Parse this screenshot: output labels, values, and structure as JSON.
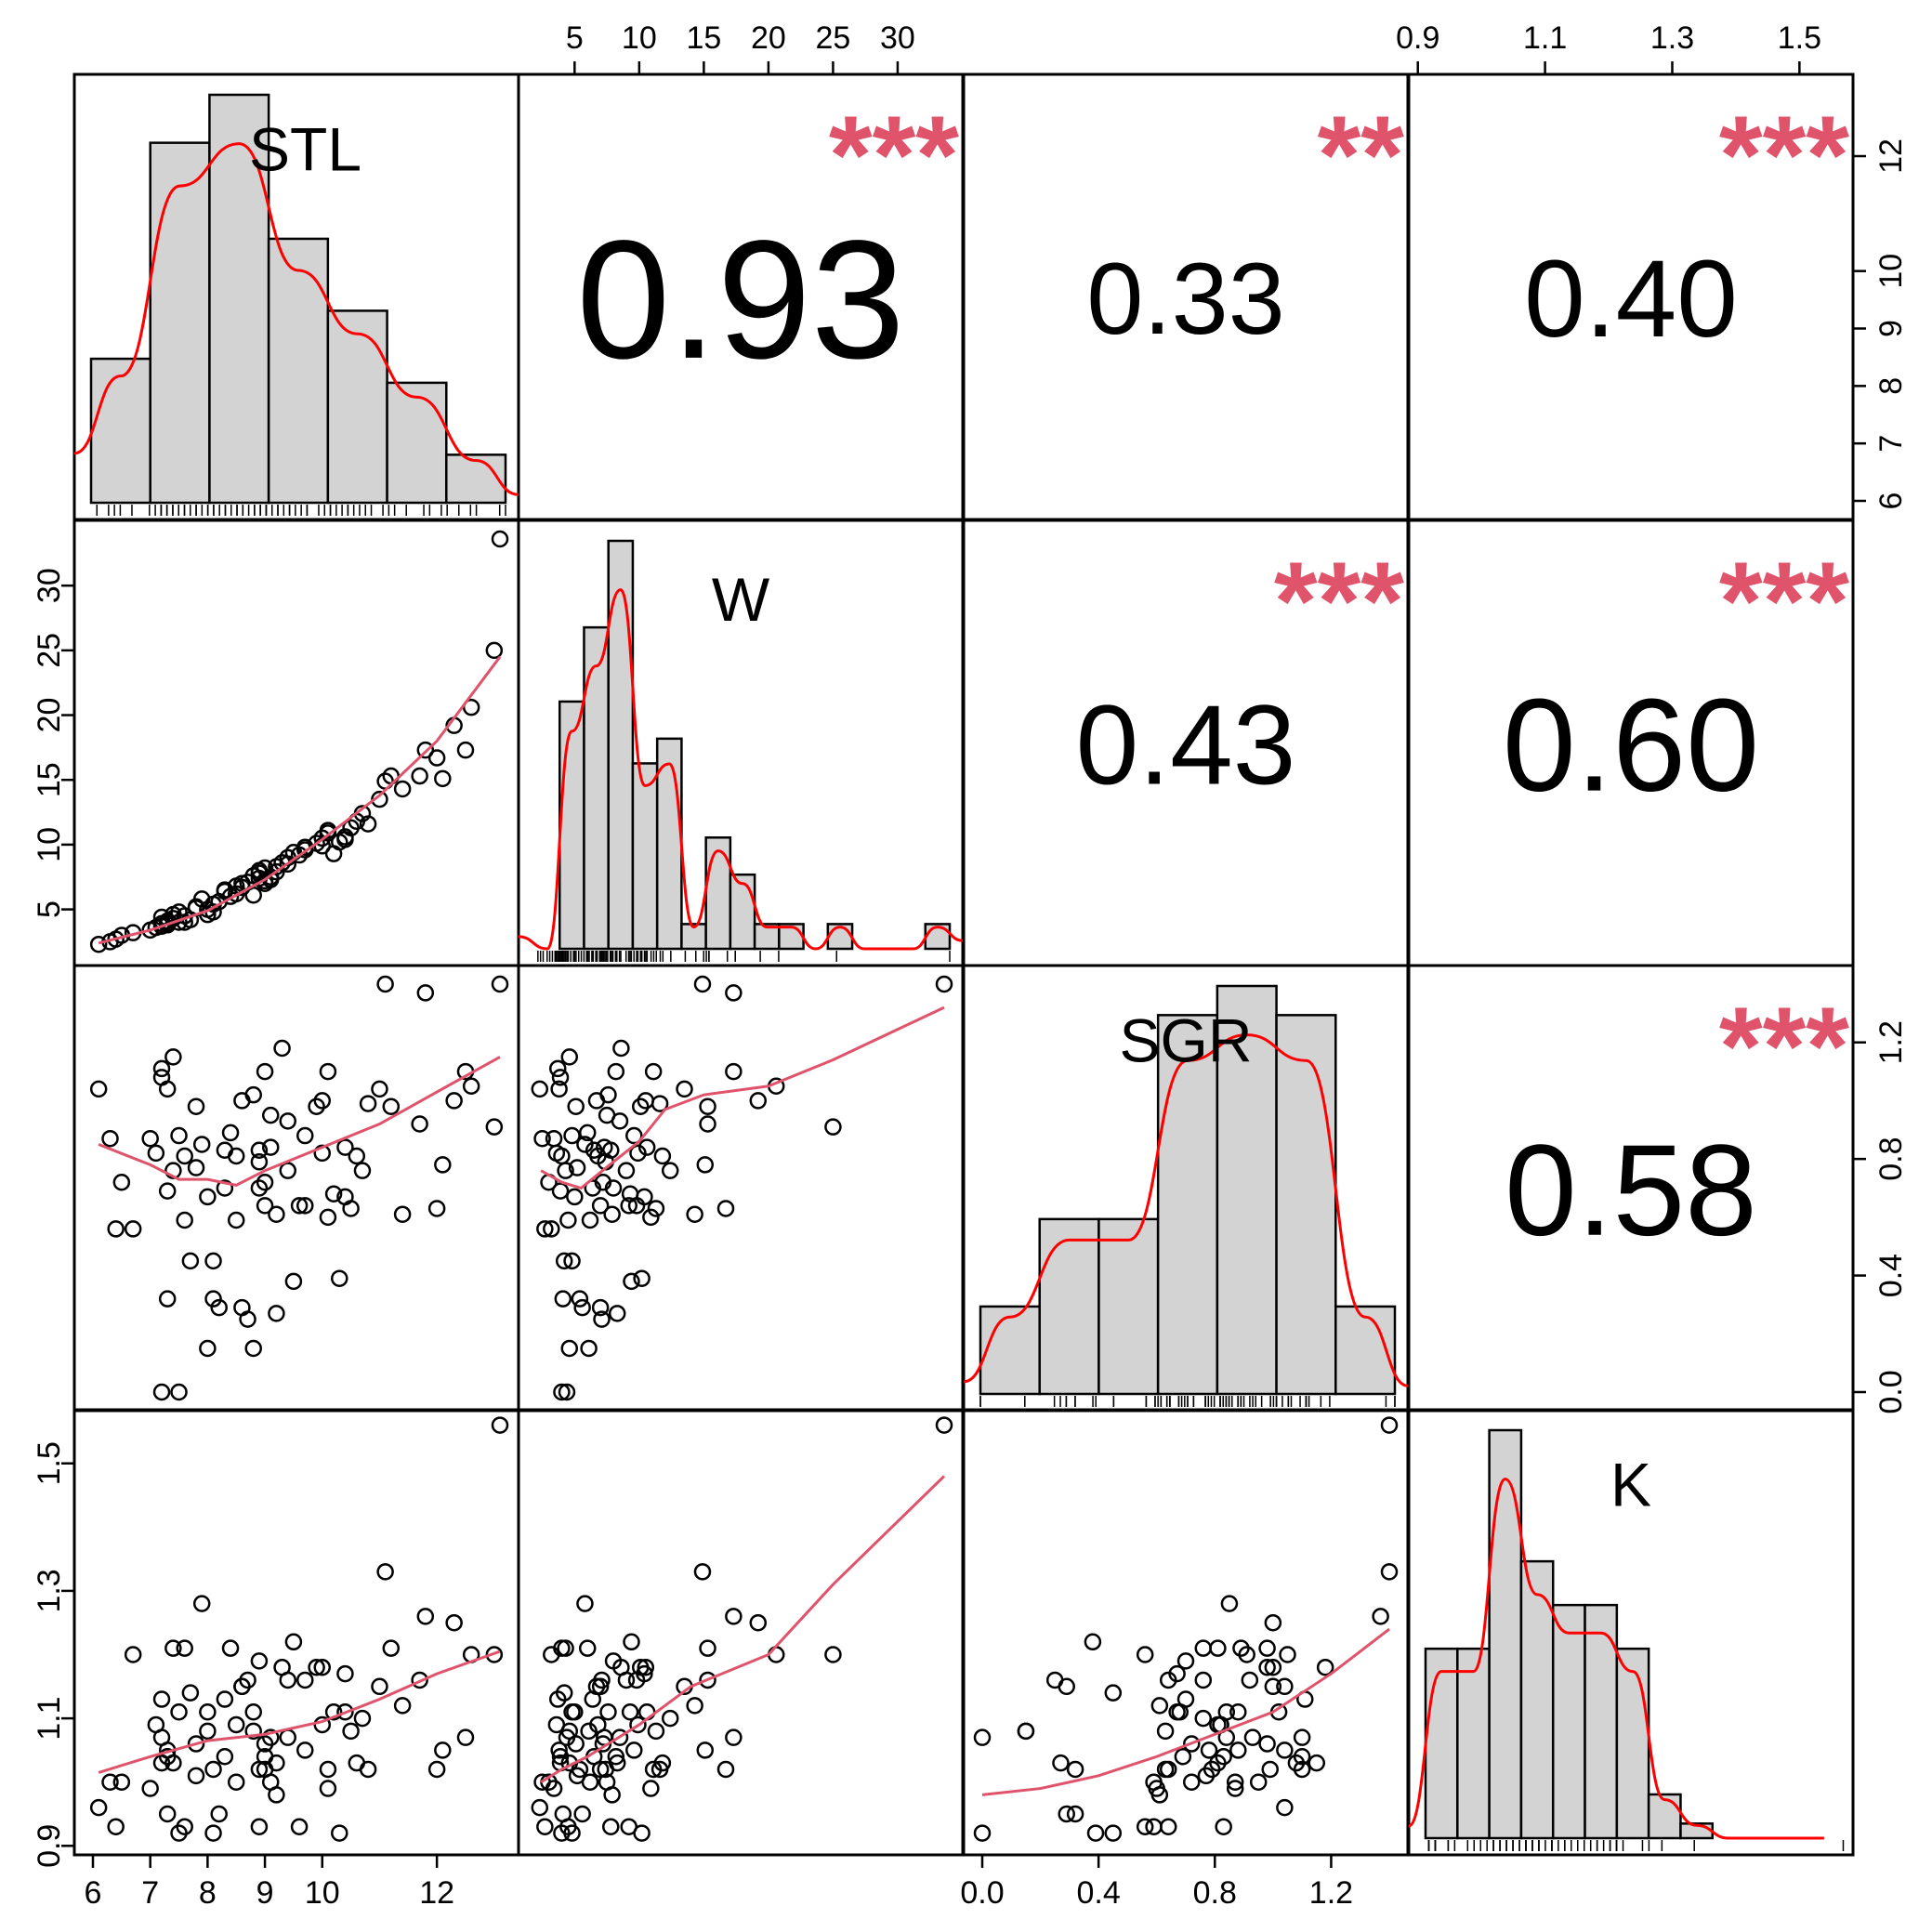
{
  "chart_data": {
    "type": "scatter-matrix",
    "variables": [
      "STL",
      "W",
      "SGR",
      "K"
    ],
    "ranges": {
      "STL": [
        6.0,
        13.1
      ],
      "W": [
        2.1,
        33.6
      ],
      "SGR": [
        0.0,
        1.4
      ],
      "K": [
        0.915,
        1.555
      ]
    },
    "ticks": {
      "STL": [
        6,
        7,
        8,
        9,
        10,
        12
      ],
      "STL_right": [
        6,
        7,
        8,
        9,
        10,
        12
      ],
      "W": [
        5,
        10,
        15,
        20,
        25,
        30
      ],
      "SGR": [
        "0.0",
        "0.4",
        "0.8",
        "1.2"
      ],
      "K": [
        "0.9",
        "1.1",
        "1.3",
        "1.5"
      ]
    },
    "correlations": [
      {
        "pair": [
          "STL",
          "W"
        ],
        "r": "0.93",
        "stars": "***"
      },
      {
        "pair": [
          "STL",
          "SGR"
        ],
        "r": "0.33",
        "stars": "**"
      },
      {
        "pair": [
          "STL",
          "K"
        ],
        "r": "0.40",
        "stars": "***"
      },
      {
        "pair": [
          "W",
          "SGR"
        ],
        "r": "0.43",
        "stars": "***"
      },
      {
        "pair": [
          "W",
          "K"
        ],
        "r": "0.60",
        "stars": "***"
      },
      {
        "pair": [
          "SGR",
          "K"
        ],
        "r": "0.58",
        "stars": "***"
      }
    ],
    "histograms": {
      "STL": {
        "breaks": [
          6,
          7,
          8,
          9,
          10,
          11,
          12,
          13
        ],
        "counts": [
          6,
          15,
          17,
          11,
          8,
          5,
          2
        ]
      },
      "W": {
        "breaks": [
          0,
          2,
          4,
          6,
          8,
          10,
          12,
          14,
          16,
          18,
          20,
          22,
          24,
          26,
          28,
          30,
          32,
          34
        ],
        "counts": [
          0,
          20,
          26,
          33,
          15,
          17,
          2,
          9,
          6,
          2,
          2,
          0,
          2,
          0,
          0,
          0,
          2
        ]
      },
      "SGR": {
        "breaks": [
          0.0,
          0.2,
          0.4,
          0.6,
          0.8,
          1.0,
          1.2,
          1.4
        ],
        "counts": [
          3,
          6,
          6,
          13,
          14,
          13,
          3
        ]
      },
      "K": {
        "breaks": [
          0.9,
          0.95,
          1.0,
          1.05,
          1.1,
          1.15,
          1.2,
          1.25,
          1.3,
          1.35,
          1.4,
          1.45,
          1.5,
          1.55
        ],
        "counts": [
          13,
          13,
          28,
          19,
          16,
          16,
          13,
          3,
          1,
          0,
          0,
          0,
          0,
          1
        ]
      }
    },
    "points": [
      [
        6.1,
        2.3,
        1.04,
        0.96
      ],
      [
        6.3,
        2.5,
        0.87,
        1.0
      ],
      [
        6.5,
        3.0,
        0.72,
        1.0
      ],
      [
        6.4,
        2.7,
        0.56,
        0.93
      ],
      [
        6.7,
        3.2,
        0.56,
        1.2
      ],
      [
        7.0,
        3.4,
        0.87,
        0.99
      ],
      [
        7.1,
        3.6,
        0.82,
        1.09
      ],
      [
        7.2,
        3.7,
        1.11,
        1.13
      ],
      [
        7.3,
        3.8,
        1.04,
        1.05
      ],
      [
        7.3,
        3.9,
        0.69,
        1.04
      ],
      [
        7.4,
        4.3,
        0.76,
        1.21
      ],
      [
        7.4,
        4.6,
        1.15,
        1.03
      ],
      [
        7.5,
        4.8,
        0.88,
        1.11
      ],
      [
        7.6,
        4.0,
        0.81,
        1.21
      ],
      [
        7.6,
        4.5,
        0.59,
        0.93
      ],
      [
        7.7,
        4.2,
        0.45,
        1.14
      ],
      [
        7.8,
        5.2,
        0.77,
        1.01
      ],
      [
        7.3,
        4.1,
        0.32,
        0.95
      ],
      [
        7.2,
        4.4,
        0.0,
        1.07
      ],
      [
        7.5,
        4.0,
        0.0,
        0.92
      ],
      [
        7.2,
        3.9,
        1.08,
        1.03
      ],
      [
        7.9,
        5.8,
        0.85,
        1.28
      ],
      [
        8.0,
        5.0,
        0.67,
        1.11
      ],
      [
        8.0,
        4.6,
        0.15,
        1.08
      ],
      [
        8.1,
        5.4,
        0.32,
        1.02
      ],
      [
        8.1,
        4.8,
        0.45,
        0.92
      ],
      [
        8.2,
        5.6,
        0.29,
        0.95
      ],
      [
        8.3,
        6.5,
        0.83,
        1.04
      ],
      [
        8.4,
        6.0,
        0.89,
        1.21
      ],
      [
        8.5,
        6.2,
        0.59,
        1.0
      ],
      [
        8.6,
        6.7,
        1.0,
        1.15
      ],
      [
        8.6,
        7.0,
        0.29,
        1.15
      ],
      [
        8.7,
        7.1,
        0.25,
        1.16
      ],
      [
        8.8,
        7.6,
        1.02,
        1.11
      ],
      [
        8.8,
        6.1,
        0.15,
        1.08
      ],
      [
        8.9,
        7.8,
        0.83,
        0.93
      ],
      [
        8.9,
        8.0,
        0.7,
        1.19
      ],
      [
        9.0,
        8.2,
        1.1,
        1.04
      ],
      [
        9.0,
        7.0,
        0.64,
        1.02
      ],
      [
        9.1,
        7.3,
        0.84,
        1.07
      ],
      [
        9.1,
        7.5,
        0.95,
        1.0
      ],
      [
        9.2,
        7.9,
        0.61,
        0.98
      ],
      [
        9.2,
        8.3,
        0.27,
        1.03
      ],
      [
        9.3,
        8.6,
        1.18,
        1.18
      ],
      [
        9.4,
        9.0,
        0.76,
        1.16
      ],
      [
        9.5,
        9.4,
        0.38,
        1.22
      ],
      [
        9.6,
        9.2,
        0.64,
        0.93
      ],
      [
        9.7,
        9.8,
        0.64,
        1.16
      ],
      [
        9.9,
        10.1,
        0.98,
        1.18
      ],
      [
        10.0,
        10.5,
        1.0,
        1.18
      ],
      [
        10.1,
        10.9,
        0.6,
        0.99
      ],
      [
        10.1,
        11.1,
        1.1,
        1.02
      ],
      [
        10.2,
        9.3,
        0.68,
        1.11
      ],
      [
        10.3,
        10.2,
        0.39,
        0.92
      ],
      [
        10.4,
        10.6,
        0.84,
        1.11
      ],
      [
        10.5,
        11.3,
        0.63,
        1.08
      ],
      [
        10.6,
        11.8,
        0.81,
        1.03
      ],
      [
        10.7,
        12.4,
        0.76,
        1.1
      ],
      [
        10.8,
        11.6,
        0.99,
        1.02
      ],
      [
        11.0,
        13.5,
        1.04,
        1.15
      ],
      [
        11.1,
        14.9,
        1.4,
        1.33
      ],
      [
        11.2,
        15.3,
        0.98,
        1.21
      ],
      [
        11.4,
        14.3,
        0.61,
        1.12
      ],
      [
        11.7,
        15.3,
        0.92,
        1.16
      ],
      [
        11.8,
        17.3,
        1.37,
        1.26
      ],
      [
        12.0,
        16.7,
        0.63,
        1.02
      ],
      [
        12.1,
        15.1,
        0.78,
        1.05
      ],
      [
        12.3,
        19.2,
        1.0,
        1.25
      ],
      [
        12.5,
        17.3,
        1.1,
        1.07
      ],
      [
        12.6,
        20.6,
        1.05,
        1.2
      ],
      [
        13.0,
        25.0,
        0.91,
        1.2
      ],
      [
        13.1,
        33.6,
        1.4,
        1.56
      ],
      [
        9.0,
        7.2,
        0.72,
        1.06
      ],
      [
        8.3,
        6.4,
        0.7,
        1.13
      ],
      [
        9.4,
        8.5,
        0.93,
        1.07
      ],
      [
        10.0,
        9.9,
        0.82,
        1.09
      ],
      [
        10.4,
        10.4,
        0.67,
        1.17
      ],
      [
        8.9,
        7.4,
        0.79,
        1.02
      ],
      [
        9.7,
        9.6,
        0.88,
        1.05
      ],
      [
        7.8,
        5.1,
        0.98,
        1.06
      ],
      [
        8.5,
        6.8,
        0.81,
        1.09
      ]
    ],
    "smooth": {
      "W_vs_STL": [
        [
          6.1,
          2.4
        ],
        [
          7.0,
          3.4
        ],
        [
          8.0,
          4.9
        ],
        [
          9.0,
          7.3
        ],
        [
          10.0,
          10.4
        ],
        [
          11.0,
          13.8
        ],
        [
          12.0,
          18.0
        ],
        [
          13.1,
          24.5
        ]
      ],
      "SGR_vs_STL": [
        [
          6.1,
          0.85
        ],
        [
          7.0,
          0.78
        ],
        [
          7.5,
          0.73
        ],
        [
          8.0,
          0.73
        ],
        [
          8.5,
          0.71
        ],
        [
          9.0,
          0.76
        ],
        [
          10.0,
          0.84
        ],
        [
          11.0,
          0.92
        ],
        [
          12.0,
          1.03
        ],
        [
          13.1,
          1.15
        ]
      ],
      "K_vs_STL": [
        [
          6.1,
          1.015
        ],
        [
          7.0,
          1.04
        ],
        [
          8.0,
          1.065
        ],
        [
          9.0,
          1.075
        ],
        [
          10.0,
          1.095
        ],
        [
          11.0,
          1.13
        ],
        [
          12.0,
          1.17
        ],
        [
          13.1,
          1.205
        ]
      ],
      "SGR_vs_W": [
        [
          2.4,
          0.76
        ],
        [
          4.0,
          0.72
        ],
        [
          5.5,
          0.7
        ],
        [
          8.0,
          0.79
        ],
        [
          10.0,
          0.86
        ],
        [
          12.0,
          0.97
        ],
        [
          15.0,
          1.02
        ],
        [
          20.0,
          1.05
        ],
        [
          25.0,
          1.14
        ],
        [
          33.6,
          1.32
        ]
      ],
      "K_vs_W": [
        [
          2.4,
          1.0
        ],
        [
          4.0,
          1.02
        ],
        [
          6.0,
          1.04
        ],
        [
          8.0,
          1.065
        ],
        [
          10.0,
          1.09
        ],
        [
          14.0,
          1.15
        ],
        [
          20.0,
          1.2
        ],
        [
          25.0,
          1.31
        ],
        [
          33.6,
          1.48
        ]
      ],
      "K_vs_SGR": [
        [
          0.0,
          0.98
        ],
        [
          0.2,
          0.99
        ],
        [
          0.4,
          1.01
        ],
        [
          0.6,
          1.04
        ],
        [
          0.8,
          1.075
        ],
        [
          1.0,
          1.11
        ],
        [
          1.2,
          1.17
        ],
        [
          1.4,
          1.24
        ]
      ]
    }
  }
}
